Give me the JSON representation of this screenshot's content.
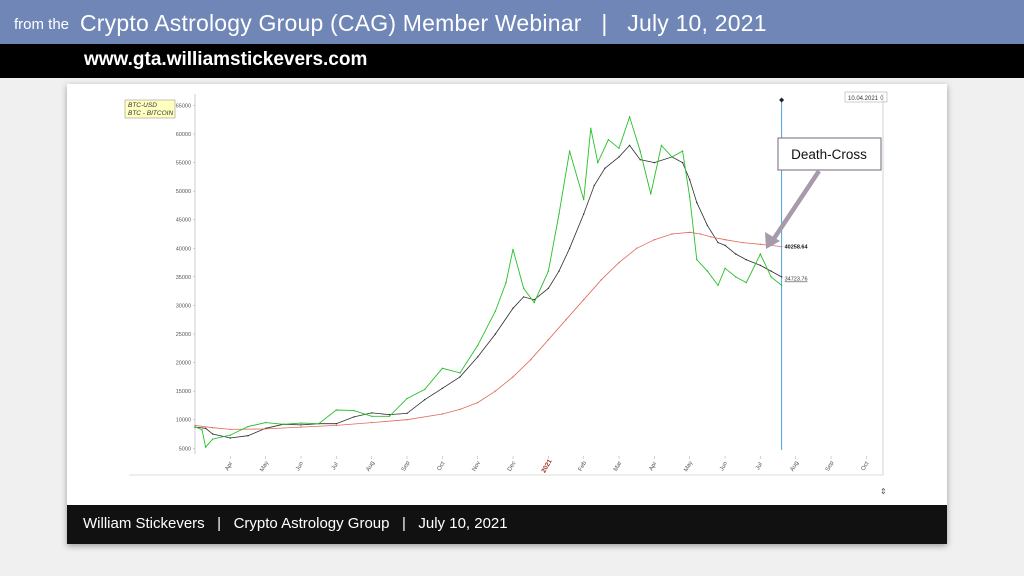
{
  "header": {
    "prefix": "from the",
    "title": "Crypto Astrology Group (CAG) Member Webinar   |   July 10, 2021",
    "url": "www.gta.williamstickevers.com"
  },
  "footer": {
    "text": "William Stickevers   |   Crypto Astrology Group   |   July 10, 2021"
  },
  "chart_data": {
    "type": "line",
    "legend": [
      "BTC-USD",
      "BTC - BITCOIN"
    ],
    "date_box": "10.04.2021",
    "annotation": "Death-Cross",
    "labels": {
      "ma_upper": "40258.64",
      "ma_lower": "34723.76"
    },
    "x_ticks": [
      "Apr",
      "May",
      "Jun",
      "Jul",
      "Aug",
      "Sep",
      "Oct",
      "Nov",
      "Dec",
      "2021",
      "Feb",
      "Mar",
      "Apr",
      "May",
      "Jun",
      "Jul",
      "Aug",
      "Sep",
      "Oct"
    ],
    "x_domain": [
      0,
      19.3
    ],
    "ylim": [
      4000,
      67000
    ],
    "y_ticks": [
      5000,
      10000,
      15000,
      20000,
      25000,
      30000,
      35000,
      40000,
      45000,
      50000,
      55000,
      60000,
      65000
    ],
    "cursor_x": 16.6,
    "series": [
      {
        "color": "#2e2e2e",
        "x": [
          0,
          0.3,
          0.5,
          1,
          1.5,
          2,
          2.5,
          3,
          3.5,
          4,
          4.5,
          5,
          5.5,
          6,
          6.5,
          7,
          7.5,
          8,
          8.5,
          9,
          9.3,
          9.6,
          10,
          10.3,
          10.6,
          11,
          11.3,
          11.6,
          12,
          12.3,
          12.6,
          13,
          13.5,
          13.8,
          14,
          14.2,
          14.5,
          14.8,
          15,
          15.3,
          15.6,
          16,
          16.3,
          16.6
        ],
        "values": [
          8700,
          8500,
          7500,
          6800,
          7200,
          8500,
          9200,
          9100,
          9300,
          9300,
          10500,
          11200,
          10900,
          11100,
          13500,
          15500,
          17500,
          21000,
          25000,
          29500,
          31500,
          31000,
          33000,
          36000,
          40000,
          46000,
          51000,
          54000,
          56000,
          58000,
          55500,
          55000,
          56000,
          55000,
          52000,
          48000,
          44000,
          41000,
          40500,
          39000,
          38000,
          37000,
          36000,
          35000
        ]
      },
      {
        "color": "#e06a5a",
        "x": [
          0,
          0.5,
          1,
          2,
          3,
          4,
          5,
          6,
          7,
          7.5,
          8,
          8.5,
          9,
          9.5,
          10,
          10.5,
          11,
          11.5,
          12,
          12.5,
          13,
          13.5,
          14,
          14.3,
          14.6,
          15,
          15.5,
          16,
          16.3,
          16.6
        ],
        "values": [
          9000,
          8600,
          8300,
          8400,
          8700,
          9000,
          9500,
          10000,
          11000,
          11800,
          13000,
          15000,
          17500,
          20500,
          24000,
          27500,
          31000,
          34500,
          37500,
          40000,
          41500,
          42500,
          42800,
          42500,
          42000,
          41500,
          41000,
          40700,
          40500,
          40300
        ]
      },
      {
        "color": "#28c028",
        "x": [
          0,
          0.2,
          0.3,
          0.5,
          1,
          1.5,
          2,
          2.5,
          3,
          3.5,
          4,
          4.5,
          5,
          5.5,
          6,
          6.5,
          7,
          7.5,
          8,
          8.5,
          8.8,
          9,
          9.3,
          9.6,
          10,
          10.3,
          10.6,
          11,
          11.2,
          11.4,
          11.7,
          12,
          12.3,
          12.6,
          12.9,
          13.2,
          13.5,
          13.8,
          14,
          14.2,
          14.5,
          14.8,
          15,
          15.3,
          15.6,
          16,
          16.3,
          16.6
        ],
        "values": [
          8800,
          8200,
          5200,
          6600,
          7300,
          8800,
          9500,
          9200,
          9400,
          9300,
          11700,
          11600,
          10600,
          10600,
          13700,
          15300,
          19000,
          18200,
          23000,
          29000,
          34000,
          39800,
          33000,
          30500,
          36000,
          46000,
          57000,
          48500,
          61000,
          55000,
          59000,
          57500,
          63000,
          57000,
          49500,
          58000,
          56000,
          57000,
          49000,
          38000,
          36000,
          33500,
          36500,
          35000,
          34000,
          39000,
          35000,
          33500
        ]
      }
    ]
  }
}
